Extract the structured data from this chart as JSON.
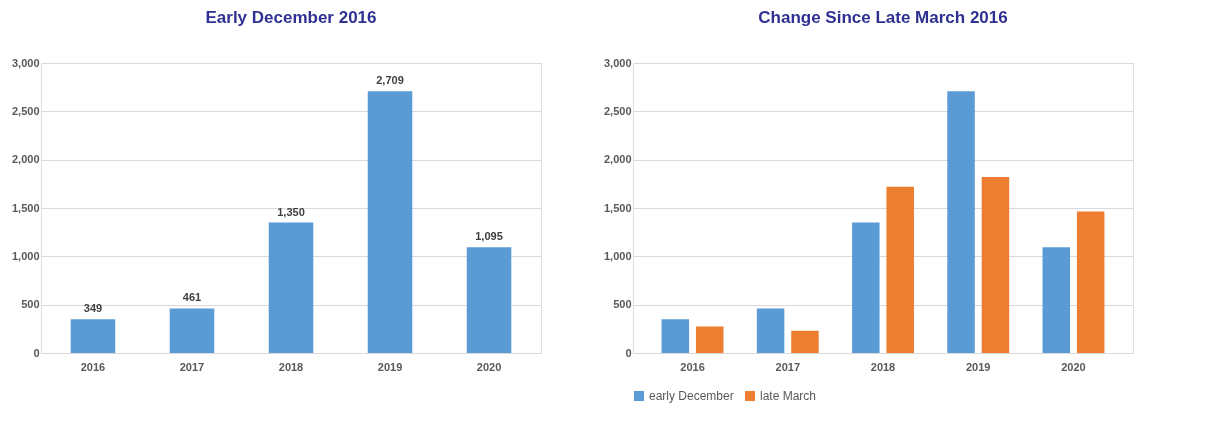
{
  "chart_data": [
    {
      "type": "bar",
      "title": "Early December 2016",
      "categories": [
        "2016",
        "2017",
        "2018",
        "2019",
        "2020"
      ],
      "series": [
        {
          "color": "#5b9bd5",
          "values": [
            349,
            461,
            1350,
            2709,
            1095
          ],
          "value_labels": [
            "349",
            "461",
            "1,350",
            "2,709",
            "1,095"
          ]
        }
      ],
      "ylim": [
        0,
        3000
      ],
      "yticks": [
        {
          "value": 0,
          "label": "0"
        },
        {
          "value": 500,
          "label": "500"
        },
        {
          "value": 1000,
          "label": "1,000"
        },
        {
          "value": 1500,
          "label": "1,500"
        },
        {
          "value": 2000,
          "label": "2,000"
        },
        {
          "value": 2500,
          "label": "2,500"
        },
        {
          "value": 3000,
          "label": "3,000"
        }
      ],
      "grid": "y"
    },
    {
      "type": "bar",
      "title": "Change Since Late March 2016",
      "categories": [
        "2016",
        "2017",
        "2018",
        "2019",
        "2020"
      ],
      "series": [
        {
          "name": "early December",
          "color": "#5b9bd5",
          "values": [
            349,
            461,
            1350,
            2709,
            1095
          ]
        },
        {
          "name": "late March",
          "color": "#ed7d31",
          "values": [
            275,
            230,
            1720,
            1820,
            1465
          ]
        }
      ],
      "ylim": [
        0,
        3000
      ],
      "yticks": [
        {
          "value": 0,
          "label": "0"
        },
        {
          "value": 500,
          "label": "500"
        },
        {
          "value": 1000,
          "label": "1,000"
        },
        {
          "value": 1500,
          "label": "1,500"
        },
        {
          "value": 2000,
          "label": "2,000"
        },
        {
          "value": 2500,
          "label": "2,500"
        },
        {
          "value": 3000,
          "label": "3,000"
        }
      ],
      "grid": "y",
      "legend": "bottom"
    }
  ]
}
